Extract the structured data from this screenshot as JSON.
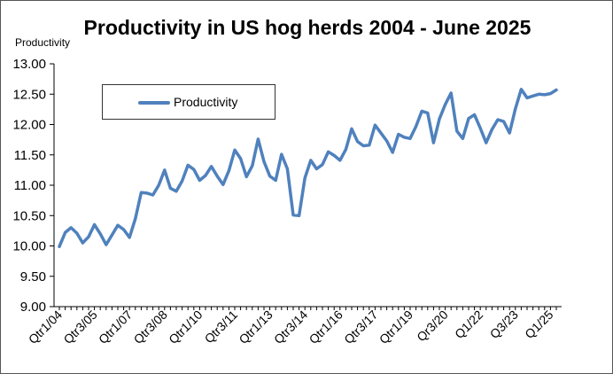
{
  "chart_data": {
    "type": "line",
    "title": "Productivity in US hog herds 2004 - June 2025",
    "ylabel": "Productivity",
    "xlabel": "",
    "ylim": [
      9.0,
      13.0
    ],
    "yticks": [
      "9.00",
      "9.50",
      "10.00",
      "10.50",
      "11.00",
      "11.50",
      "12.00",
      "12.50",
      "13.00"
    ],
    "grid": false,
    "legend_position": "top-left",
    "x_tick_labels": [
      "Qtr1/04",
      "Qtr3/05",
      "Qtr1/07",
      "Qtr3/08",
      "Qtr1/10",
      "Qtr3/11",
      "Qtr1/13",
      "Qtr3/14",
      "Qtr1/16",
      "Qtr3/17",
      "Qtr1/19",
      "Qr3/20",
      "Q1/22",
      "Q3/23",
      "Q1/25"
    ],
    "series": [
      {
        "name": "Productivity",
        "color": "#4F81BD",
        "values": [
          9.99,
          10.22,
          10.3,
          10.21,
          10.05,
          10.15,
          10.35,
          10.2,
          10.02,
          10.18,
          10.34,
          10.27,
          10.14,
          10.45,
          10.88,
          10.87,
          10.84,
          11.0,
          11.25,
          10.95,
          10.9,
          11.07,
          11.33,
          11.26,
          11.08,
          11.16,
          11.31,
          11.15,
          11.01,
          11.24,
          11.58,
          11.44,
          11.14,
          11.32,
          11.76,
          11.39,
          11.15,
          11.08,
          11.51,
          11.27,
          10.51,
          10.5,
          11.12,
          11.41,
          11.27,
          11.34,
          11.55,
          11.49,
          11.41,
          11.59,
          11.93,
          11.72,
          11.65,
          11.66,
          11.99,
          11.86,
          11.73,
          11.54,
          11.84,
          11.79,
          11.77,
          11.97,
          12.22,
          12.19,
          11.7,
          12.09,
          12.33,
          12.52,
          11.89,
          11.77,
          12.1,
          12.16,
          11.94,
          11.7,
          11.92,
          12.08,
          12.05,
          11.86,
          12.26,
          12.58,
          12.44,
          12.47,
          12.5,
          12.49,
          12.51,
          12.57
        ]
      }
    ]
  }
}
